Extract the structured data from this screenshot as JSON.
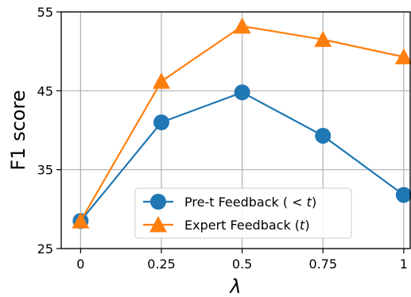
{
  "chart_data": {
    "type": "line",
    "x": [
      0,
      0.25,
      0.5,
      0.75,
      1
    ],
    "xtick_labels": [
      "0",
      "0.25",
      "0.5",
      "0.75",
      "1"
    ],
    "ytick_values": [
      25,
      35,
      45,
      55
    ],
    "ytick_labels": [
      "25",
      "35",
      "45",
      "55"
    ],
    "xlim": [
      -0.06,
      1.02
    ],
    "ylim": [
      25,
      55
    ],
    "xlabel": "λ",
    "ylabel": "F1 score",
    "grid": true,
    "legend_position": "lower-center",
    "series": [
      {
        "name": "Pre-t Feedback ( < t)",
        "legend_text": "Pre-t Feedback ( < ",
        "legend_var": "t",
        "legend_suffix": ")",
        "color": "#1f77b4",
        "marker": "circle",
        "values": [
          28.5,
          41.0,
          44.8,
          39.3,
          31.8
        ]
      },
      {
        "name": "Expert Feedback (t)",
        "legend_text": "Expert Feedback (",
        "legend_var": "t",
        "legend_suffix": ")",
        "color": "#ff7f0e",
        "marker": "triangle",
        "values": [
          28.5,
          46.2,
          53.2,
          51.5,
          49.3
        ]
      }
    ]
  }
}
